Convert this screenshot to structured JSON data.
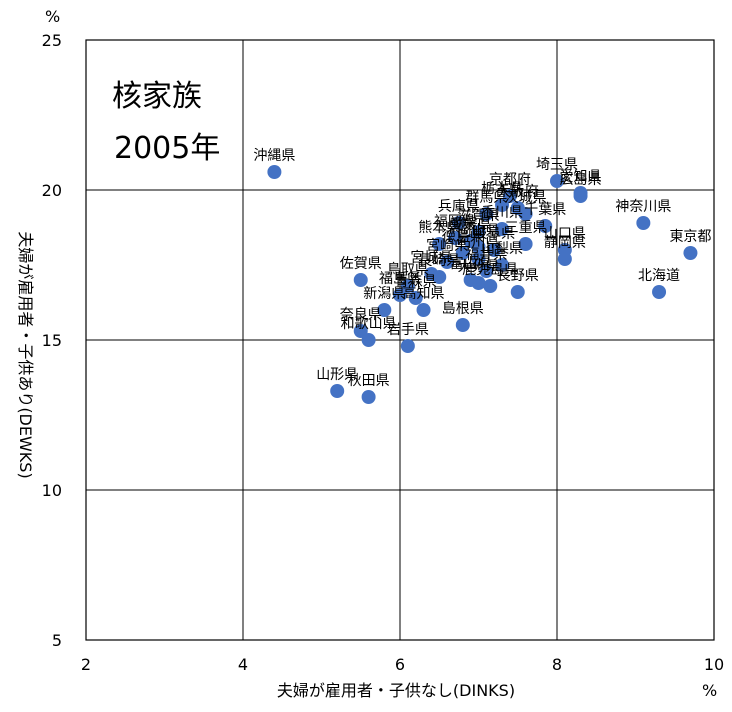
{
  "chart_data": {
    "type": "scatter",
    "title": "核家族",
    "subtitle": "2005年",
    "xlabel": "夫婦が雇用者・子供なし(DINKS)",
    "ylabel": "夫婦が雇用者・子供あり(DEWKS)",
    "x_unit": "%",
    "y_unit": "%",
    "xlim": [
      2,
      10
    ],
    "ylim": [
      5,
      25
    ],
    "xticks": [
      2,
      4,
      6,
      8,
      10
    ],
    "yticks": [
      5,
      10,
      15,
      20,
      25
    ],
    "grid": true,
    "marker_color": "#4472C4",
    "points": [
      {
        "x": 4.4,
        "y": 20.6,
        "label": "沖縄県"
      },
      {
        "x": 8.0,
        "y": 20.3,
        "label": "埼玉県"
      },
      {
        "x": 8.3,
        "y": 19.9,
        "label": "愛知県"
      },
      {
        "x": 8.3,
        "y": 19.8,
        "label": "広島県"
      },
      {
        "x": 9.1,
        "y": 18.9,
        "label": "神奈川県"
      },
      {
        "x": 9.7,
        "y": 17.9,
        "label": "東京都"
      },
      {
        "x": 9.3,
        "y": 16.6,
        "label": "北海道"
      },
      {
        "x": 8.1,
        "y": 18.0,
        "label": "山口県"
      },
      {
        "x": 8.1,
        "y": 17.7,
        "label": "静岡県"
      },
      {
        "x": 7.85,
        "y": 18.8,
        "label": "千葉県"
      },
      {
        "x": 7.5,
        "y": 16.6,
        "label": "長野県"
      },
      {
        "x": 7.3,
        "y": 19.5,
        "label": "栃木県"
      },
      {
        "x": 6.8,
        "y": 15.5,
        "label": "島根県"
      },
      {
        "x": 7.0,
        "y": 16.9,
        "label": "大分県"
      },
      {
        "x": 6.5,
        "y": 18.2,
        "label": "熊本県"
      },
      {
        "x": 5.5,
        "y": 17.0,
        "label": "佐賀県"
      },
      {
        "x": 6.1,
        "y": 16.8,
        "label": "鳥取県"
      },
      {
        "x": 6.0,
        "y": 16.5,
        "label": "福島県"
      },
      {
        "x": 5.5,
        "y": 15.3,
        "label": "奈良県"
      },
      {
        "x": 5.6,
        "y": 15.0,
        "label": "和歌山県"
      },
      {
        "x": 6.1,
        "y": 14.8,
        "label": "岩手県"
      },
      {
        "x": 5.2,
        "y": 13.3,
        "label": "山形県"
      },
      {
        "x": 5.6,
        "y": 13.1,
        "label": "秋田県"
      },
      {
        "x": 7.6,
        "y": 18.2,
        "label": "三重県"
      },
      {
        "x": 7.3,
        "y": 18.7,
        "label": "香川県"
      },
      {
        "x": 7.0,
        "y": 18.1,
        "label": "岡山県"
      },
      {
        "x": 6.9,
        "y": 18.3,
        "label": "愛媛県"
      },
      {
        "x": 6.6,
        "y": 17.6,
        "label": "宮崎県"
      },
      {
        "x": 6.4,
        "y": 17.2,
        "label": "宮城県"
      },
      {
        "x": 6.2,
        "y": 16.4,
        "label": "青森県"
      },
      {
        "x": 5.8,
        "y": 16.0,
        "label": "新潟県"
      },
      {
        "x": 7.1,
        "y": 19.2,
        "label": "群馬県"
      },
      {
        "x": 7.0,
        "y": 18.6,
        "label": "滋賀県"
      },
      {
        "x": 7.3,
        "y": 17.5,
        "label": "山梨県"
      },
      {
        "x": 6.7,
        "y": 18.4,
        "label": "福岡県"
      },
      {
        "x": 6.5,
        "y": 17.1,
        "label": "長崎県"
      },
      {
        "x": 6.8,
        "y": 17.9,
        "label": "徳島県"
      },
      {
        "x": 6.3,
        "y": 16.0,
        "label": "高知県"
      },
      {
        "x": 7.2,
        "y": 18.0,
        "label": "岐阜県"
      },
      {
        "x": 7.6,
        "y": 19.2,
        "label": "茨城県"
      },
      {
        "x": 7.4,
        "y": 19.8,
        "label": "京都府"
      },
      {
        "x": 7.1,
        "y": 17.3,
        "label": "福井県"
      },
      {
        "x": 6.9,
        "y": 17.0,
        "label": "富山県"
      },
      {
        "x": 7.0,
        "y": 17.7,
        "label": "石川県"
      },
      {
        "x": 6.75,
        "y": 18.9,
        "label": "兵庫県"
      },
      {
        "x": 7.5,
        "y": 19.4,
        "label": "大阪府"
      },
      {
        "x": 7.15,
        "y": 16.8,
        "label": "鹿児島県"
      }
    ]
  }
}
